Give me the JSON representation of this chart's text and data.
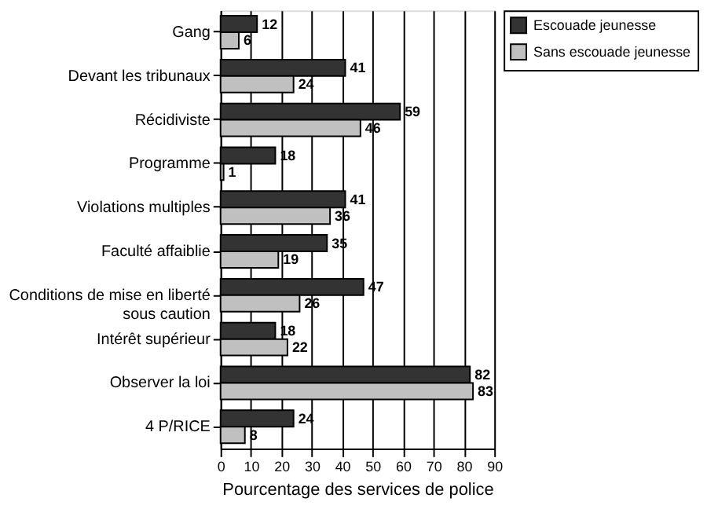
{
  "chart_data": {
    "type": "bar",
    "orientation": "horizontal",
    "xlabel": "Pourcentage des services de police",
    "categories": [
      "Gang",
      "Devant les tribunaux",
      "Récidiviste",
      "Programme",
      "Violations multiples",
      "Faculté affaiblie",
      "Conditions de mise en liberté sous caution",
      "Intérêt supérieur",
      "Observer la loi",
      "4 P/RICE"
    ],
    "series": [
      {
        "name": "Escouade jeunesse",
        "color": "#333333",
        "values": [
          12,
          41,
          59,
          18,
          41,
          35,
          47,
          18,
          82,
          24
        ]
      },
      {
        "name": "Sans escouade jeunesse",
        "color": "#c0c0c0",
        "values": [
          6,
          24,
          46,
          1,
          36,
          19,
          26,
          22,
          83,
          8
        ]
      }
    ],
    "xlim": [
      0,
      90
    ],
    "xticks": [
      0,
      10,
      20,
      30,
      40,
      50,
      60,
      70,
      80,
      90
    ],
    "grid": "x",
    "legend": "right",
    "data_labels": true
  }
}
